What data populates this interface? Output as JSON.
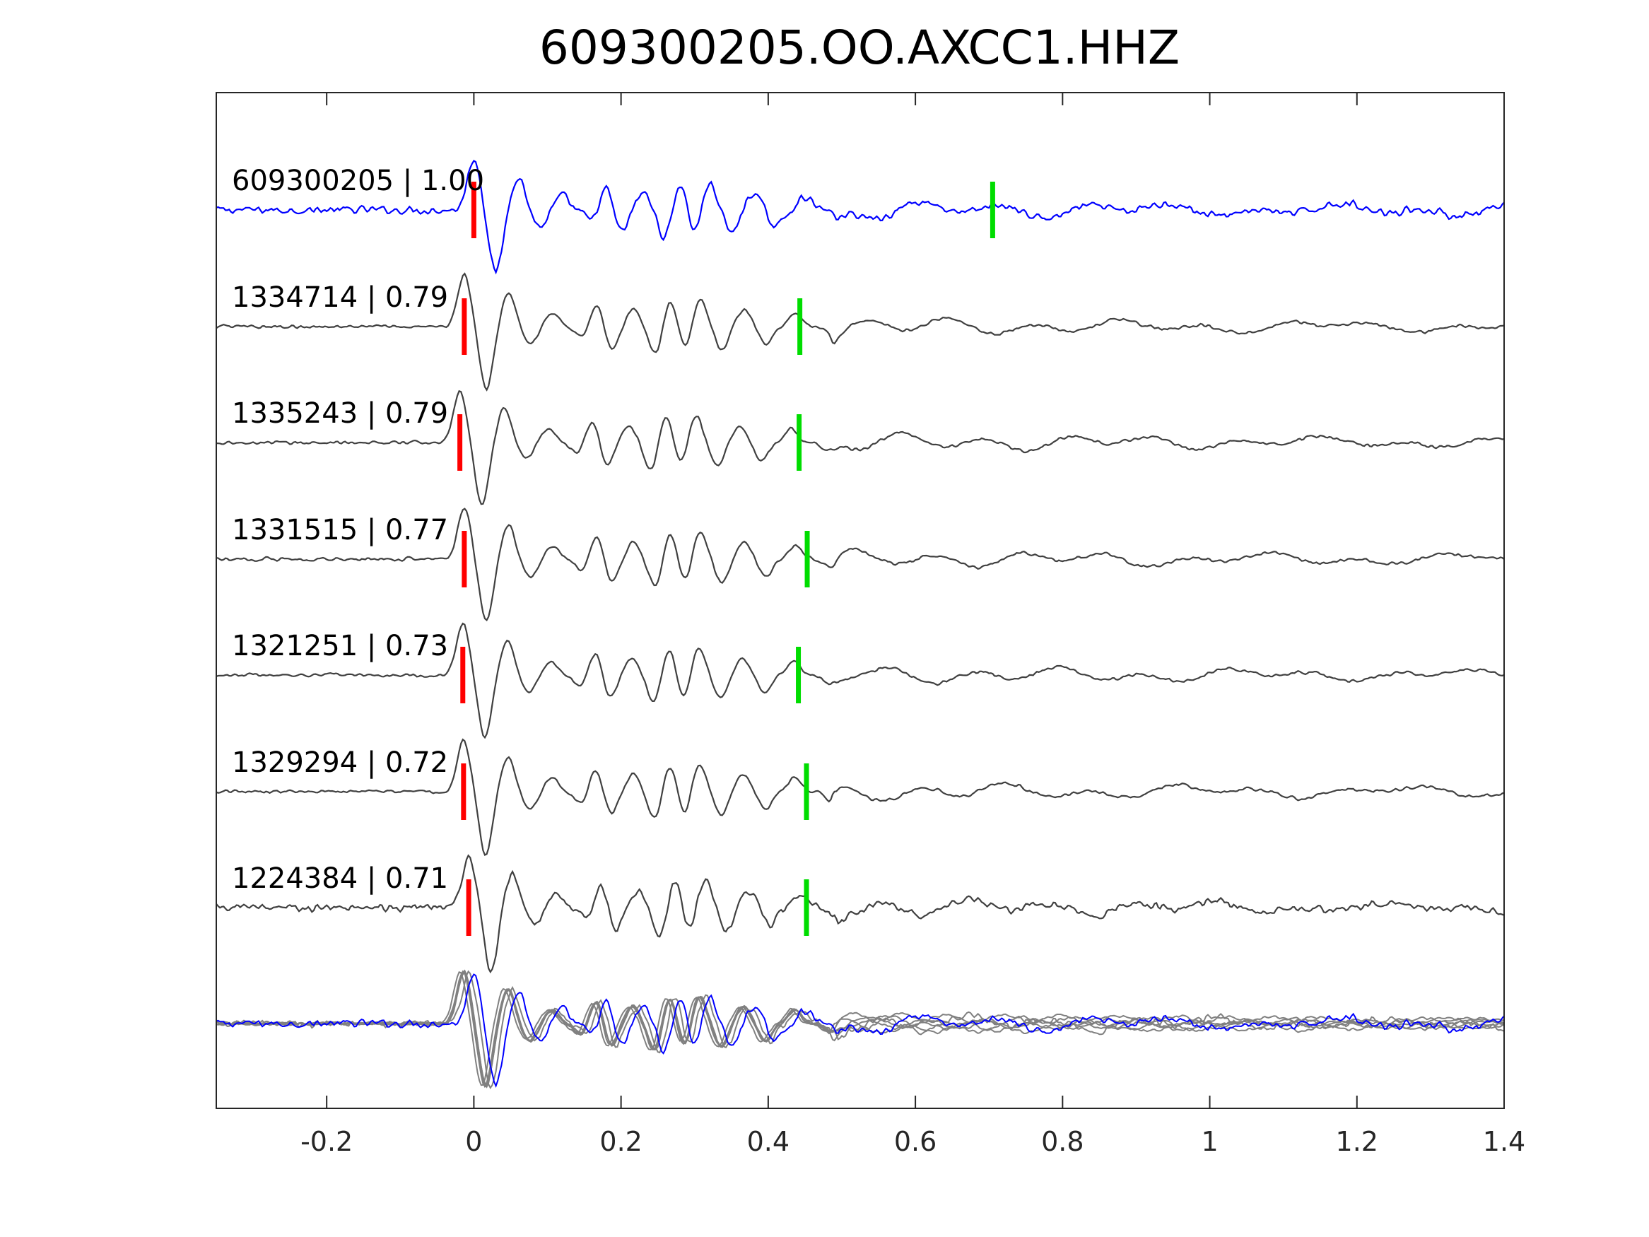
{
  "chart_data": {
    "type": "line",
    "title": "609300205.OO.AXCC1.HHZ",
    "xlabel": "",
    "ylabel": "",
    "xlim": [
      -0.35,
      1.4
    ],
    "x_ticks": [
      -0.2,
      0,
      0.2,
      0.4,
      0.6,
      0.8,
      1,
      1.2,
      1.4
    ],
    "x_tick_labels": [
      "-0.2",
      "0",
      "0.2",
      "0.4",
      "0.6",
      "0.8",
      "1",
      "1.2",
      "1.4"
    ],
    "grid": false,
    "colors": {
      "template": "#0000ff",
      "match": "#404040",
      "overlay": "#808080",
      "p_pick": "#ff0000",
      "s_pick": "#00dd00",
      "axes": "#262626"
    },
    "series": [
      {
        "label": "609300205 | 1.00",
        "role": "template",
        "p_pick": 0.0,
        "s_pick": 0.705
      },
      {
        "label": "1334714 | 0.79",
        "role": "match",
        "p_pick": -0.013,
        "s_pick": 0.443
      },
      {
        "label": "1335243 | 0.79",
        "role": "match",
        "p_pick": -0.019,
        "s_pick": 0.442
      },
      {
        "label": "1331515 | 0.77",
        "role": "match",
        "p_pick": -0.013,
        "s_pick": 0.453
      },
      {
        "label": "1321251 | 0.73",
        "role": "match",
        "p_pick": -0.015,
        "s_pick": 0.441
      },
      {
        "label": "1329294 | 0.72",
        "role": "match",
        "p_pick": -0.014,
        "s_pick": 0.452
      },
      {
        "label": "1224384 | 0.71",
        "role": "match",
        "p_pick": -0.007,
        "s_pick": 0.452
      }
    ],
    "waveform_features": [
      {
        "t": 0.0,
        "a": 0.45
      },
      {
        "t": 0.03,
        "a": -0.55
      },
      {
        "t": 0.06,
        "a": 0.3
      },
      {
        "t": 0.09,
        "a": -0.15
      },
      {
        "t": 0.12,
        "a": 0.12
      },
      {
        "t": 0.16,
        "a": -0.1
      },
      {
        "t": 0.18,
        "a": 0.2
      },
      {
        "t": 0.2,
        "a": -0.2
      },
      {
        "t": 0.23,
        "a": 0.15
      },
      {
        "t": 0.26,
        "a": -0.25
      },
      {
        "t": 0.28,
        "a": 0.25
      },
      {
        "t": 0.3,
        "a": -0.2
      },
      {
        "t": 0.32,
        "a": 0.25
      },
      {
        "t": 0.35,
        "a": -0.2
      },
      {
        "t": 0.38,
        "a": 0.15
      },
      {
        "t": 0.41,
        "a": -0.15
      },
      {
        "t": 0.45,
        "a": 0.12
      },
      {
        "t": 0.5,
        "a": -0.08
      }
    ]
  }
}
